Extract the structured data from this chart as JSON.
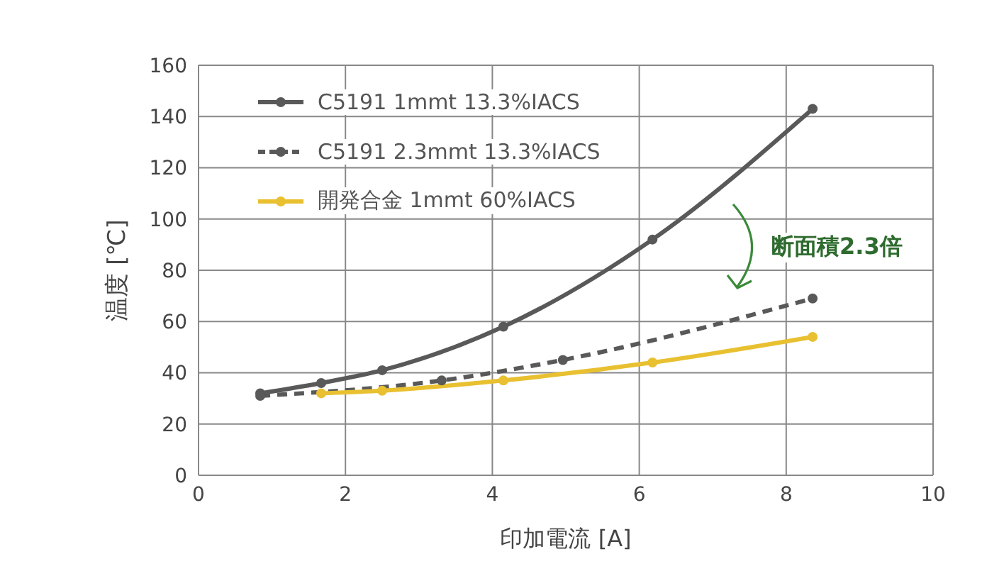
{
  "chart_data": {
    "type": "line",
    "xlabel": "印加電流 [A]",
    "ylabel": "温度 [℃]",
    "xlim": [
      0,
      10
    ],
    "xticks": [
      0,
      2,
      4,
      6,
      8,
      10
    ],
    "ylim": [
      0,
      160
    ],
    "yticks": [
      0,
      20,
      40,
      60,
      80,
      100,
      120,
      140,
      160
    ],
    "grid": true,
    "legend": "top left",
    "marker": "circle",
    "series": [
      {
        "name": "C5191 1mmt 13.3%IACS",
        "color": "#595959",
        "line_style": "solid",
        "x": [
          0.84,
          1.67,
          2.5,
          4.15,
          6.18,
          8.36
        ],
        "values": [
          32,
          36,
          41,
          58,
          92,
          143
        ]
      },
      {
        "name": "C5191 2.3mmt 13.3%IACS",
        "color": "#595959",
        "line_style": "dashed",
        "x": [
          0.84,
          3.31,
          4.96,
          8.36
        ],
        "values": [
          31,
          37,
          45,
          69
        ]
      },
      {
        "name": "開発合金 1mmt 60%IACS",
        "color": "#e8c030",
        "line_style": "solid",
        "x": [
          1.67,
          2.5,
          4.15,
          6.18,
          8.36
        ],
        "values": [
          32,
          33,
          37,
          44,
          54
        ]
      }
    ],
    "annotations": [
      "断面積2.3倍"
    ]
  }
}
